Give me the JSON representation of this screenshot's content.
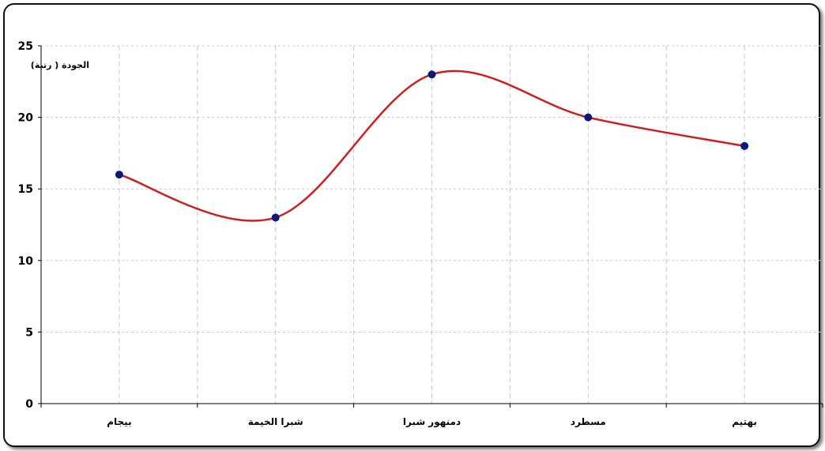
{
  "chart_data": {
    "type": "line",
    "categories": [
      "بيجام",
      "شبرا الخيمة",
      "دمنهور شبرا",
      "مسطرد",
      "بهتيم"
    ],
    "series": [
      {
        "values": [
          16,
          13,
          23,
          20,
          18
        ],
        "color": "#cc1f1f",
        "marker_color": "#0b1a7a"
      }
    ],
    "ylabel": "الجودة ( رتبة)",
    "ylim": [
      0,
      25
    ],
    "yticks": [
      0,
      5,
      10,
      15,
      20,
      25
    ],
    "grid": true,
    "smooth": true
  }
}
